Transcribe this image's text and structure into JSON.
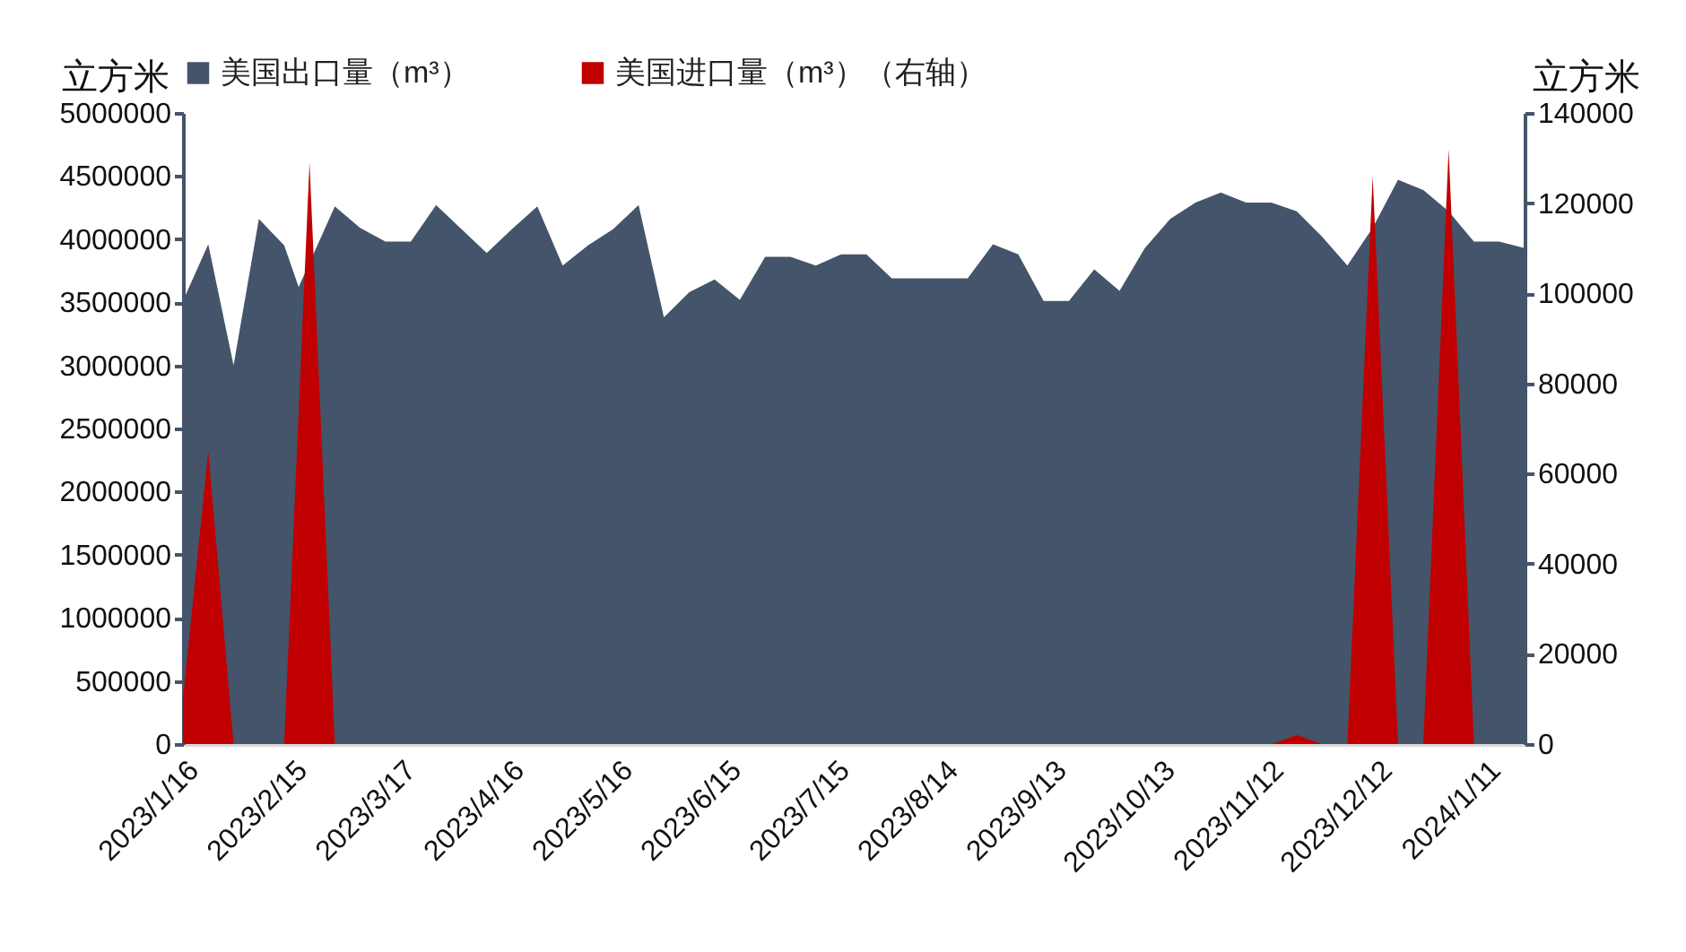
{
  "chart_data": {
    "type": "area",
    "ylabel": "立方米",
    "y2label": "立方米",
    "x": [
      "2023-01-16",
      "2023-01-23",
      "2023-01-30",
      "2023-02-06",
      "2023-02-13",
      "2023-02-20",
      "2023-02-27",
      "2023-03-06",
      "2023-03-13",
      "2023-03-20",
      "2023-03-27",
      "2023-04-03",
      "2023-04-10",
      "2023-04-17",
      "2023-04-24",
      "2023-05-01",
      "2023-05-08",
      "2023-05-15",
      "2023-05-22",
      "2023-05-29",
      "2023-06-05",
      "2023-06-12",
      "2023-06-19",
      "2023-06-26",
      "2023-07-03",
      "2023-07-10",
      "2023-07-17",
      "2023-07-24",
      "2023-07-31",
      "2023-08-07",
      "2023-08-14",
      "2023-08-21",
      "2023-08-28",
      "2023-09-04",
      "2023-09-11",
      "2023-09-18",
      "2023-09-25",
      "2023-10-02",
      "2023-10-09",
      "2023-10-16",
      "2023-10-23",
      "2023-10-30",
      "2023-11-06",
      "2023-11-13",
      "2023-11-20",
      "2023-11-27",
      "2023-12-04",
      "2023-12-11",
      "2023-12-18",
      "2023-12-25",
      "2024-01-01",
      "2024-01-08",
      "2024-01-15",
      "2024-01-22"
    ],
    "series": [
      {
        "name": "美国出口量（m³）",
        "color": "#44546a",
        "x": [
          "2023-01-16",
          "2023-01-23",
          "2023-01-30",
          "2023-02-06",
          "2023-02-13",
          "2023-02-17",
          "2023-02-27",
          "2023-03-06",
          "2023-03-13",
          "2023-03-20",
          "2023-03-27",
          "2023-04-03",
          "2023-04-10",
          "2023-04-17",
          "2023-04-24",
          "2023-05-01",
          "2023-05-08",
          "2023-05-15",
          "2023-05-22",
          "2023-05-29",
          "2023-06-05",
          "2023-06-12",
          "2023-06-19",
          "2023-06-26",
          "2023-07-03",
          "2023-07-10",
          "2023-07-17",
          "2023-07-24",
          "2023-07-31",
          "2023-08-07",
          "2023-08-14",
          "2023-08-21",
          "2023-08-28",
          "2023-09-04",
          "2023-09-11",
          "2023-09-18",
          "2023-09-25",
          "2023-10-02",
          "2023-10-09",
          "2023-10-16",
          "2023-10-23",
          "2023-10-30",
          "2023-11-06",
          "2023-11-13",
          "2023-11-20",
          "2023-11-27",
          "2023-12-04",
          "2023-12-11",
          "2023-12-18",
          "2023-12-25",
          "2024-01-01",
          "2024-01-08",
          "2024-01-15",
          "2024-01-22"
        ],
        "values": [
          3510000,
          3960000,
          3000000,
          4160000,
          3950000,
          3620000,
          4260000,
          4090000,
          3980000,
          3980000,
          4270000,
          4080000,
          3890000,
          4080000,
          4260000,
          3790000,
          3950000,
          4080000,
          4270000,
          3380000,
          3580000,
          3680000,
          3520000,
          3860000,
          3860000,
          3790000,
          3880000,
          3880000,
          3690000,
          3690000,
          3690000,
          3690000,
          3960000,
          3880000,
          3510000,
          3510000,
          3760000,
          3590000,
          3930000,
          4160000,
          4290000,
          4370000,
          4290000,
          4290000,
          4220000,
          4020000,
          3790000,
          4090000,
          4470000,
          4390000,
          4220000,
          3980000,
          3980000,
          3930000
        ]
      },
      {
        "name": "美国进口量（m³）（右轴）",
        "color": "#c00000",
        "axis": "y2",
        "values": [
          10000,
          65000,
          0,
          0,
          0,
          129000,
          0,
          0,
          0,
          0,
          0,
          0,
          0,
          0,
          0,
          0,
          0,
          0,
          0,
          0,
          0,
          0,
          0,
          0,
          0,
          0,
          0,
          0,
          0,
          0,
          0,
          0,
          0,
          0,
          0,
          0,
          0,
          0,
          0,
          0,
          0,
          0,
          0,
          0,
          2000,
          0,
          0,
          126000,
          0,
          0,
          132000,
          0,
          0,
          0
        ]
      }
    ],
    "xlim": [
      "2023-01-16",
      "2024-01-22"
    ],
    "xticks": [
      {
        "value": "2023-01-16",
        "label": "2023/1/16"
      },
      {
        "value": "2023-02-15",
        "label": "2023/2/15"
      },
      {
        "value": "2023-03-17",
        "label": "2023/3/17"
      },
      {
        "value": "2023-04-16",
        "label": "2023/4/16"
      },
      {
        "value": "2023-05-16",
        "label": "2023/5/16"
      },
      {
        "value": "2023-06-15",
        "label": "2023/6/15"
      },
      {
        "value": "2023-07-15",
        "label": "2023/7/15"
      },
      {
        "value": "2023-08-14",
        "label": "2023/8/14"
      },
      {
        "value": "2023-09-13",
        "label": "2023/9/13"
      },
      {
        "value": "2023-10-13",
        "label": "2023/10/13"
      },
      {
        "value": "2023-11-12",
        "label": "2023/11/12"
      },
      {
        "value": "2023-12-12",
        "label": "2023/12/12"
      },
      {
        "value": "2024-01-11",
        "label": "2024/1/11"
      }
    ],
    "ylim": [
      0,
      5000000
    ],
    "yticks": [
      0,
      500000,
      1000000,
      1500000,
      2000000,
      2500000,
      3000000,
      3500000,
      4000000,
      4500000,
      5000000
    ],
    "y2lim": [
      0,
      140000
    ],
    "y2ticks": [
      0,
      20000,
      40000,
      60000,
      80000,
      100000,
      120000,
      140000
    ],
    "grid": false,
    "legend": "top"
  }
}
